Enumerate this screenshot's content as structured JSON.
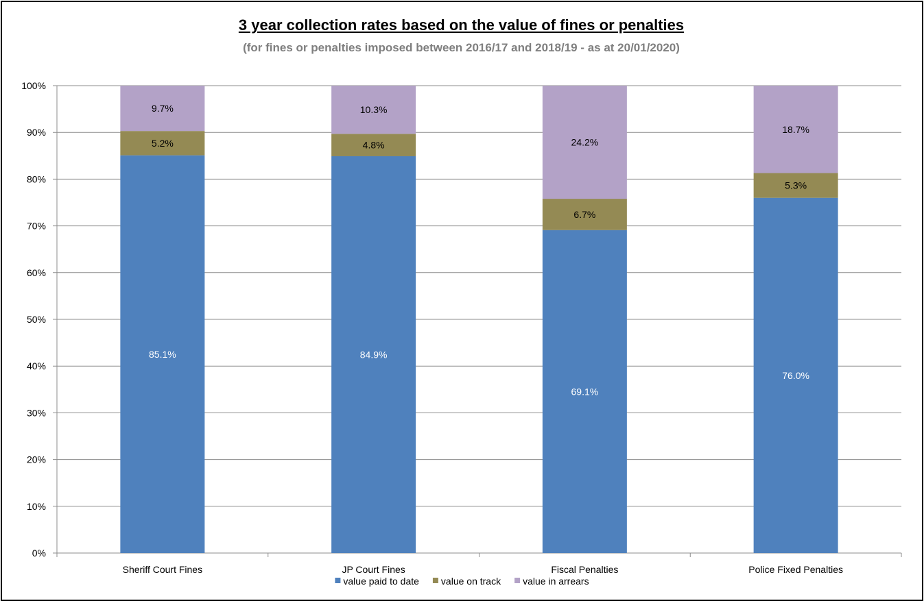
{
  "chart_data": {
    "type": "bar",
    "stacked": true,
    "title": "3 year collection rates based on the value of fines or penalties",
    "subtitle": "(for fines or penalties imposed between 2016/17 and 2018/19 - as at  20/01/2020)",
    "categories": [
      "Sheriff Court Fines",
      "JP Court Fines",
      "Fiscal Penalties",
      "Police Fixed Penalties"
    ],
    "series": [
      {
        "name": "value paid to date",
        "color": "#4f81bd",
        "label_color": "#ffffff",
        "values": [
          85.1,
          84.9,
          69.1,
          76.0
        ],
        "labels": [
          "85.1%",
          "84.9%",
          "69.1%",
          "76.0%"
        ]
      },
      {
        "name": "value on track",
        "color": "#948a54",
        "label_color": "#000000",
        "values": [
          5.2,
          4.8,
          6.7,
          5.3
        ],
        "labels": [
          "5.2%",
          "4.8%",
          "6.7%",
          "5.3%"
        ]
      },
      {
        "name": "value in arrears",
        "color": "#b3a2c7",
        "label_color": "#000000",
        "values": [
          9.7,
          10.3,
          24.2,
          18.7
        ],
        "labels": [
          "9.7%",
          "10.3%",
          "24.2%",
          "18.7%"
        ]
      }
    ],
    "ylim": [
      0,
      100
    ],
    "yticks": [
      "0%",
      "10%",
      "20%",
      "30%",
      "40%",
      "50%",
      "60%",
      "70%",
      "80%",
      "90%",
      "100%"
    ],
    "grid": true,
    "legend": "bottom"
  }
}
